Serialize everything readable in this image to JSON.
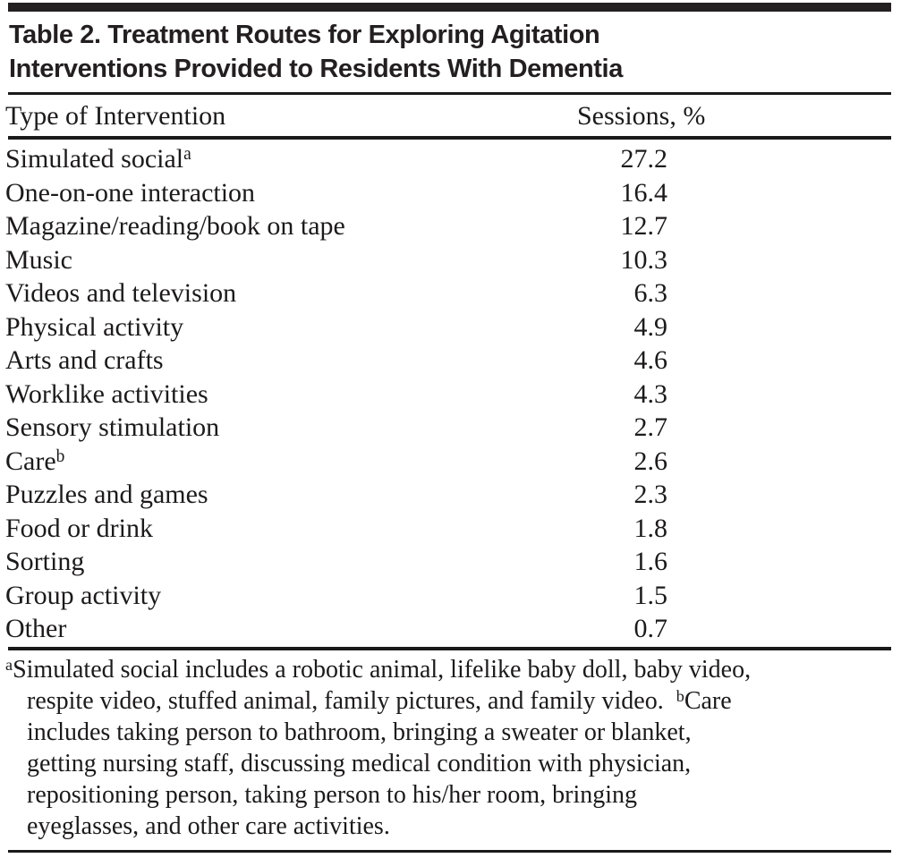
{
  "table": {
    "title_lines": [
      "Table 2. Treatment Routes for Exploring Agitation",
      "Interventions Provided to Residents With Dementia"
    ],
    "columns": {
      "type": "Type of Intervention",
      "sessions": "Sessions, %"
    },
    "rows": [
      {
        "label": "Simulated social",
        "sup": "a",
        "value": "27.2"
      },
      {
        "label": "One-on-one interaction",
        "sup": "",
        "value": "16.4"
      },
      {
        "label": "Magazine/reading/book on tape",
        "sup": "",
        "value": "12.7"
      },
      {
        "label": "Music",
        "sup": "",
        "value": "10.3"
      },
      {
        "label": "Videos and television",
        "sup": "",
        "value": "6.3"
      },
      {
        "label": "Physical activity",
        "sup": "",
        "value": "4.9"
      },
      {
        "label": "Arts and crafts",
        "sup": "",
        "value": "4.6"
      },
      {
        "label": "Worklike activities",
        "sup": "",
        "value": "4.3"
      },
      {
        "label": "Sensory stimulation",
        "sup": "",
        "value": "2.7"
      },
      {
        "label": "Care",
        "sup": "b",
        "value": "2.6"
      },
      {
        "label": "Puzzles and games",
        "sup": "",
        "value": "2.3"
      },
      {
        "label": "Food or drink",
        "sup": "",
        "value": "1.8"
      },
      {
        "label": "Sorting",
        "sup": "",
        "value": "1.6"
      },
      {
        "label": "Group activity",
        "sup": "",
        "value": "1.5"
      },
      {
        "label": "Other",
        "sup": "",
        "value": "0.7"
      }
    ],
    "footnote_lines": [
      [
        {
          "s": "a"
        },
        {
          "t": "Simulated social includes a robotic animal, lifelike baby doll, baby video,"
        }
      ],
      [
        {
          "t": "respite video, stuffed animal, family pictures, and family video.  "
        },
        {
          "s": "b"
        },
        {
          "t": "Care"
        }
      ],
      [
        {
          "t": "includes taking person to bathroom, bringing a sweater or blanket,"
        }
      ],
      [
        {
          "t": "getting nursing staff, discussing medical condition with physician,"
        }
      ],
      [
        {
          "t": "repositioning person, taking person to his/her room, bringing"
        }
      ],
      [
        {
          "t": "eyeglasses, and other care activities."
        }
      ]
    ],
    "colors": {
      "text": "#1c1a1b",
      "title": "#231f20",
      "rule": "#1a1a1a",
      "background": "#ffffff"
    }
  },
  "chart_data": {
    "type": "table",
    "title": "Table 2. Treatment Routes for Exploring Agitation Interventions Provided to Residents With Dementia",
    "columns": [
      "Type of Intervention",
      "Sessions, %"
    ],
    "categories": [
      "Simulated social",
      "One-on-one interaction",
      "Magazine/reading/book on tape",
      "Music",
      "Videos and television",
      "Physical activity",
      "Arts and crafts",
      "Worklike activities",
      "Sensory stimulation",
      "Care",
      "Puzzles and games",
      "Food or drink",
      "Sorting",
      "Group activity",
      "Other"
    ],
    "values": [
      27.2,
      16.4,
      12.7,
      10.3,
      6.3,
      4.9,
      4.6,
      4.3,
      2.7,
      2.6,
      2.3,
      1.8,
      1.6,
      1.5,
      0.7
    ]
  }
}
